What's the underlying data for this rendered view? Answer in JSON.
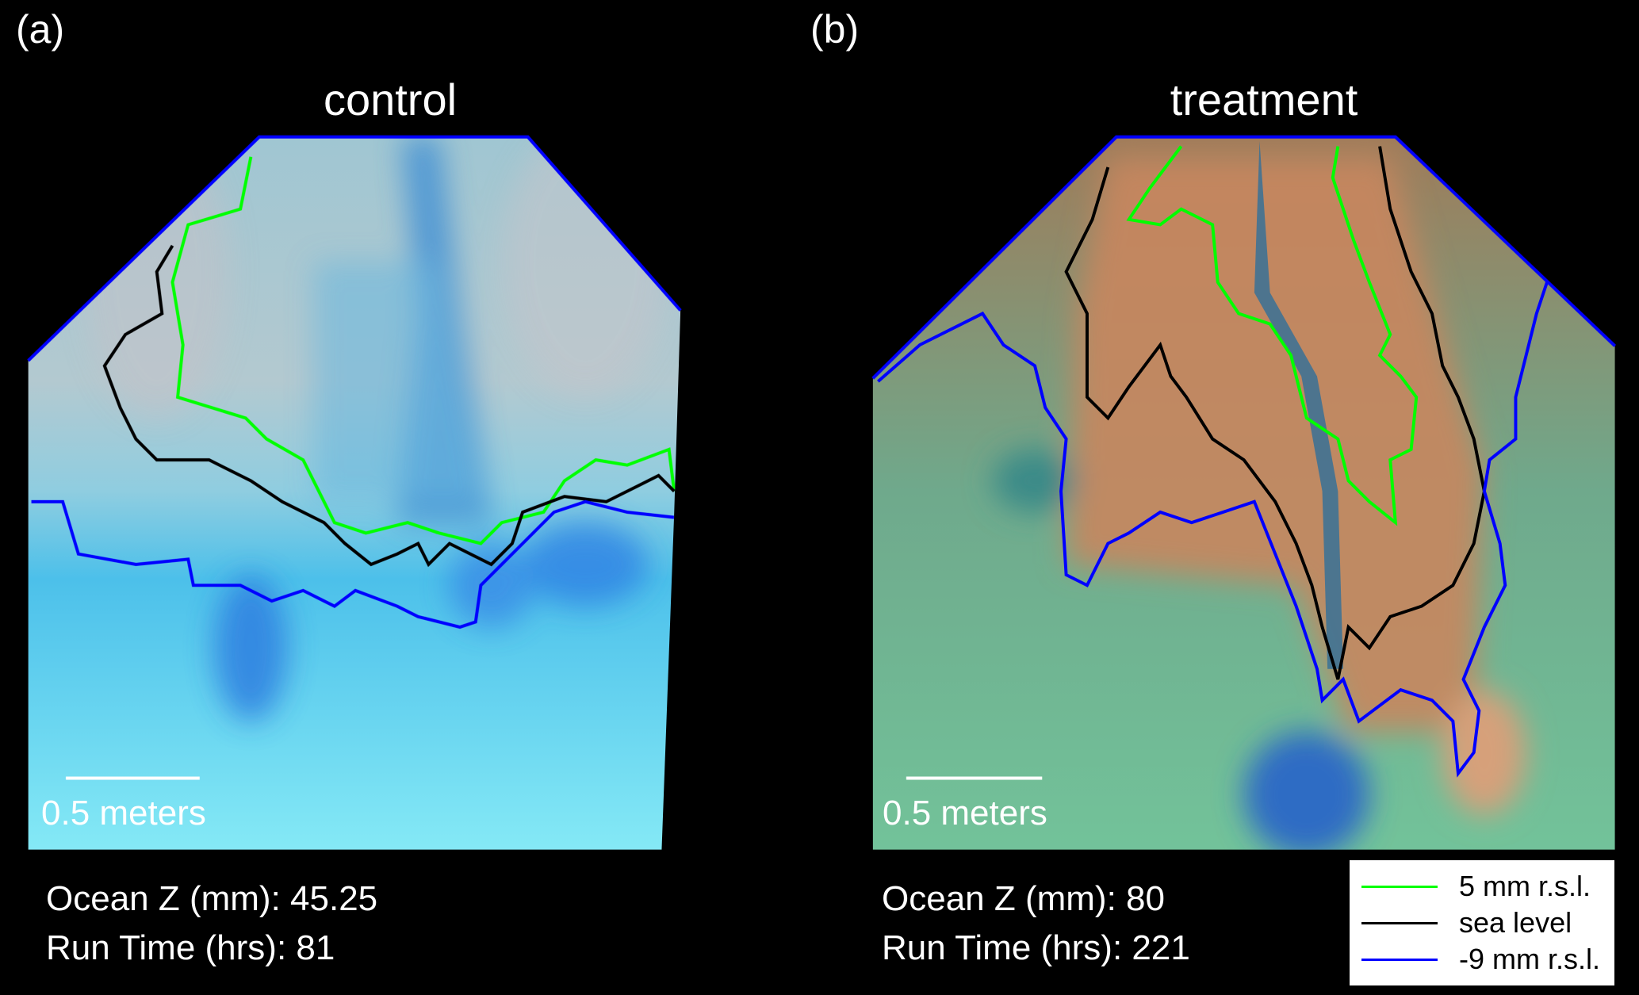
{
  "panels": [
    {
      "label": "(a)",
      "title": "control",
      "scale_bar_label": "0.5 meters",
      "ocean_z": "Ocean Z (mm): 45.25",
      "run_time": "Run Time (hrs): 81"
    },
    {
      "label": "(b)",
      "title": "treatment",
      "scale_bar_label": "0.5 meters",
      "ocean_z": "Ocean Z (mm): 80",
      "run_time": "Run Time (hrs): 221"
    }
  ],
  "legend": {
    "items": [
      {
        "label": "5 mm r.s.l.",
        "color": "#00ff00"
      },
      {
        "label": "sea level",
        "color": "#000000"
      },
      {
        "label": "-9 mm r.s.l.",
        "color": "#0000ff"
      }
    ]
  }
}
